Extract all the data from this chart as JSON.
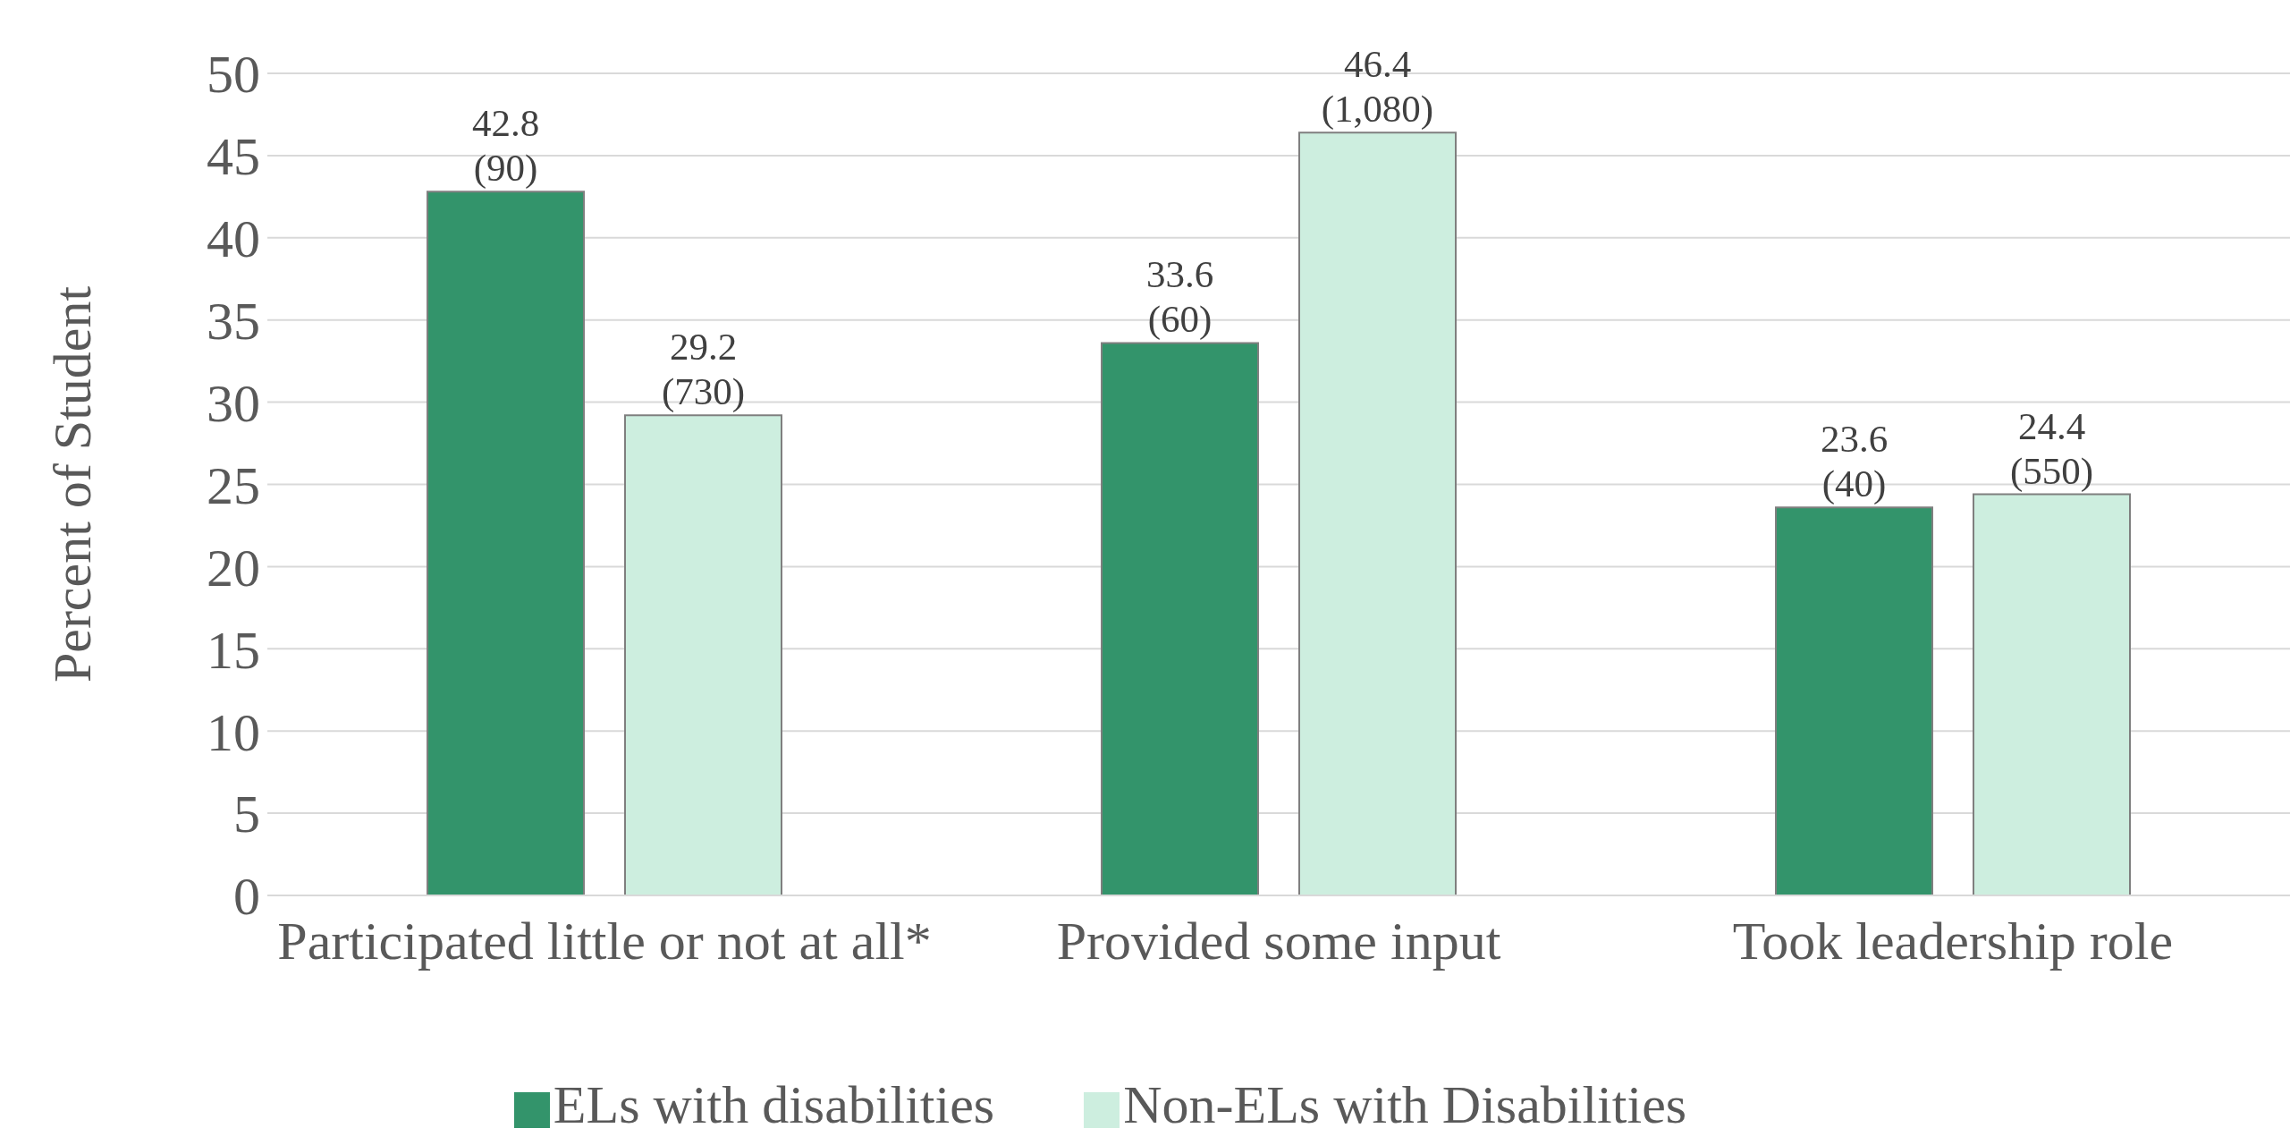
{
  "chart_data": {
    "type": "bar",
    "ylabel": "Percent of Student",
    "categories": [
      "Participated little or not at all*",
      "Provided some input",
      "Took leadership role"
    ],
    "series": [
      {
        "name": "ELs with disabilities",
        "color": "#33946b",
        "values": [
          42.8,
          33.6,
          23.6
        ],
        "value_labels": [
          "42.8\n(90)",
          "33.6\n(60)",
          "23.6\n(40)"
        ]
      },
      {
        "name": "Non-ELs with Disabilities",
        "color": "#cdeedf",
        "values": [
          29.2,
          46.4,
          24.4
        ],
        "value_labels": [
          "29.2\n(730)",
          "46.4\n(1,080)",
          "24.4\n(550)"
        ]
      }
    ],
    "ylim": [
      0,
      50
    ],
    "yticks": [
      0,
      5,
      10,
      15,
      20,
      25,
      30,
      35,
      40,
      45,
      50
    ],
    "grid": "y",
    "legend": "bottom"
  }
}
